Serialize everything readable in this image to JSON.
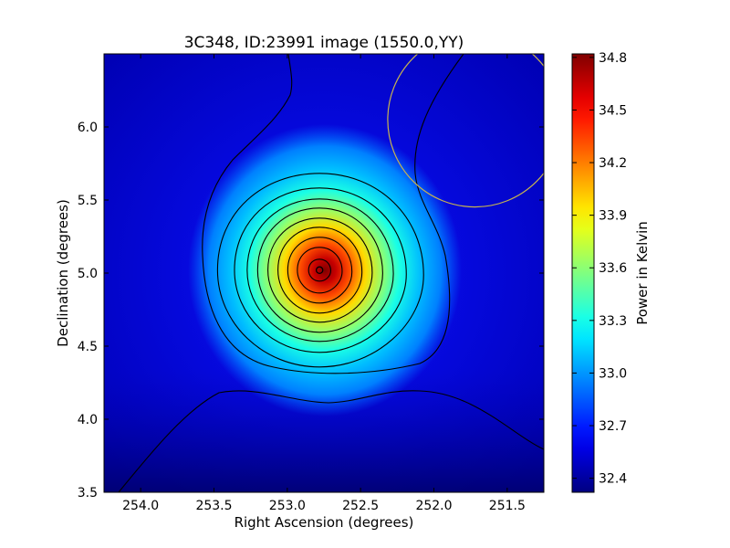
{
  "chart_data": {
    "type": "heatmap",
    "title": "3C348, ID:23991 image (1550.0,YY)",
    "xlabel": "Right Ascension (degrees)",
    "ylabel": "Declination (degrees)",
    "colorbar_label": "Power in Kelvin",
    "xlim": [
      254.25,
      251.25
    ],
    "ylim": [
      3.5,
      6.5
    ],
    "x_ticks": [
      "254.0",
      "253.5",
      "253.0",
      "252.5",
      "252.0",
      "251.5"
    ],
    "x_tick_values": [
      254.0,
      253.5,
      253.0,
      252.5,
      252.0,
      251.5
    ],
    "y_ticks": [
      "3.5",
      "4.0",
      "4.5",
      "5.0",
      "5.5",
      "6.0"
    ],
    "y_tick_values": [
      3.5,
      4.0,
      4.5,
      5.0,
      5.5,
      6.0
    ],
    "colorbar_range": [
      32.32,
      34.82
    ],
    "colorbar_ticks": [
      "32.4",
      "32.7",
      "33.0",
      "33.3",
      "33.6",
      "33.9",
      "34.2",
      "34.5",
      "34.8"
    ],
    "colorbar_tick_values": [
      32.4,
      32.7,
      33.0,
      33.3,
      33.6,
      33.9,
      34.2,
      34.5,
      34.8
    ],
    "colormap": "jet",
    "source_peak": {
      "ra": 252.78,
      "dec": 5.02,
      "value": 34.8
    },
    "beam_circle": {
      "ra": 251.72,
      "dec": 6.05,
      "radius_deg": 0.73,
      "color": "#c8b450"
    },
    "grid": false,
    "contour_color": "#000000"
  }
}
